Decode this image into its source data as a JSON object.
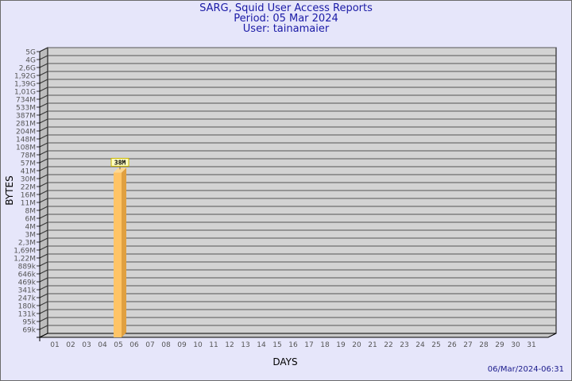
{
  "title": "SARG, Squid User Access Reports",
  "period": "Period: 05 Mar 2024",
  "user": "User: tainamaier",
  "footer_timestamp": "06/Mar/2024-06:31",
  "chart_data": {
    "type": "bar",
    "xlabel": "DAYS",
    "ylabel": "BYTES",
    "y_scale": "log",
    "y_tick_labels": [
      "5G",
      "4G",
      "2,6G",
      "1,92G",
      "1,39G",
      "1,01G",
      "734M",
      "533M",
      "387M",
      "281M",
      "204M",
      "148M",
      "108M",
      "78M",
      "57M",
      "41M",
      "30M",
      "22M",
      "16M",
      "11M",
      "8M",
      "6M",
      "4M",
      "3M",
      "2,3M",
      "1,69M",
      "1,22M",
      "889k",
      "646k",
      "469k",
      "341k",
      "247k",
      "180k",
      "131k",
      "95k",
      "69k"
    ],
    "categories": [
      "01",
      "02",
      "03",
      "04",
      "05",
      "06",
      "07",
      "08",
      "09",
      "10",
      "11",
      "12",
      "13",
      "14",
      "15",
      "16",
      "17",
      "18",
      "19",
      "20",
      "21",
      "22",
      "23",
      "24",
      "25",
      "26",
      "27",
      "28",
      "29",
      "30",
      "31"
    ],
    "values": [
      null,
      null,
      null,
      null,
      "38M",
      null,
      null,
      null,
      null,
      null,
      null,
      null,
      null,
      null,
      null,
      null,
      null,
      null,
      null,
      null,
      null,
      null,
      null,
      null,
      null,
      null,
      null,
      null,
      null,
      null,
      null
    ],
    "grid": true,
    "colors": {
      "bar_front": "#ffc466",
      "bar_side": "#e0a040",
      "wall": "#d3d3d3",
      "label_bg": "#ffffc0",
      "label_border": "#c8b400"
    }
  }
}
